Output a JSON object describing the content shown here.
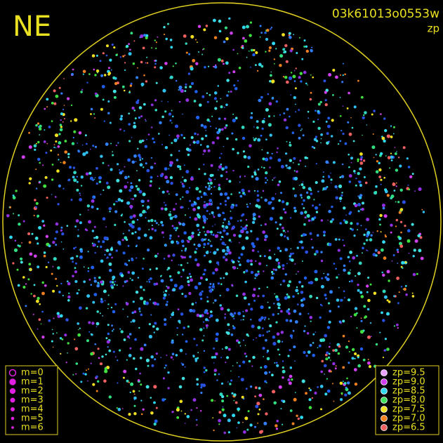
{
  "header": {
    "direction": "NE",
    "frame_id": "03k61013o0553w",
    "mode": "zp"
  },
  "magnitude_legend": {
    "items": [
      {
        "label": "m=0",
        "size": 4.5
      },
      {
        "label": "m=1",
        "size": 4
      },
      {
        "label": "m=2",
        "size": 3.4
      },
      {
        "label": "m=3",
        "size": 2.8
      },
      {
        "label": "m=4",
        "size": 2.2
      },
      {
        "label": "m=5",
        "size": 1.6
      },
      {
        "label": "m=6",
        "size": 1.1
      }
    ]
  },
  "zp_legend": {
    "items": [
      {
        "label": "zp=9.5",
        "color": "#e9a0ff"
      },
      {
        "label": "zp=9.0",
        "color": "#d040f0"
      },
      {
        "label": "zp=8.5",
        "color": "#30d8f0"
      },
      {
        "label": "zp=8.0",
        "color": "#40e060"
      },
      {
        "label": "zp=7.5",
        "color": "#f0e020"
      },
      {
        "label": "zp=7.0",
        "color": "#f08020"
      },
      {
        "label": "zp=6.5",
        "color": "#f06060"
      }
    ]
  }
}
